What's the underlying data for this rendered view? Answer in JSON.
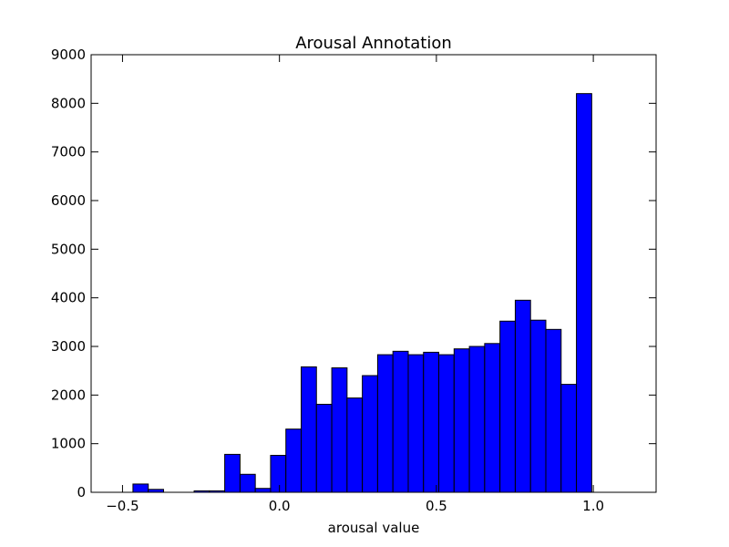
{
  "chart_data": {
    "type": "bar",
    "title": "Arousal Annotation",
    "xlabel": "arousal value",
    "ylabel": "",
    "xlim": [
      -0.6,
      1.2
    ],
    "ylim": [
      0,
      9000
    ],
    "xticks": [
      -0.5,
      0.0,
      0.5,
      1.0
    ],
    "xtick_labels": [
      "−0.5",
      "0.0",
      "0.5",
      "1.0"
    ],
    "yticks": [
      0,
      1000,
      2000,
      3000,
      4000,
      5000,
      6000,
      7000,
      8000,
      9000
    ],
    "ytick_labels": [
      "0",
      "1000",
      "2000",
      "3000",
      "4000",
      "5000",
      "6000",
      "7000",
      "8000",
      "9000"
    ],
    "bin_edges": [
      -0.4667,
      -0.4179,
      -0.3692,
      -0.3205,
      -0.2718,
      -0.2231,
      -0.1744,
      -0.1256,
      -0.0769,
      -0.0282,
      0.0205,
      0.0692,
      0.1179,
      0.1667,
      0.2154,
      0.2641,
      0.3128,
      0.3615,
      0.4103,
      0.459,
      0.5077,
      0.5564,
      0.6051,
      0.6538,
      0.7026,
      0.7513,
      0.8,
      0.8487,
      0.8974,
      0.9462,
      0.9949
    ],
    "bin_edges_note": "",
    "values": [
      170,
      60,
      0,
      0,
      30,
      30,
      780,
      370,
      80,
      760,
      1300,
      2580,
      1810,
      2560,
      1940,
      2400,
      2830,
      2900,
      2830,
      2880,
      2830,
      2950,
      3000,
      3060,
      3520,
      3950,
      3540,
      3350,
      2220,
      8200
    ],
    "bar_color": "#0000ff",
    "edge_color": "#000000",
    "grid": false,
    "legend": "none"
  }
}
